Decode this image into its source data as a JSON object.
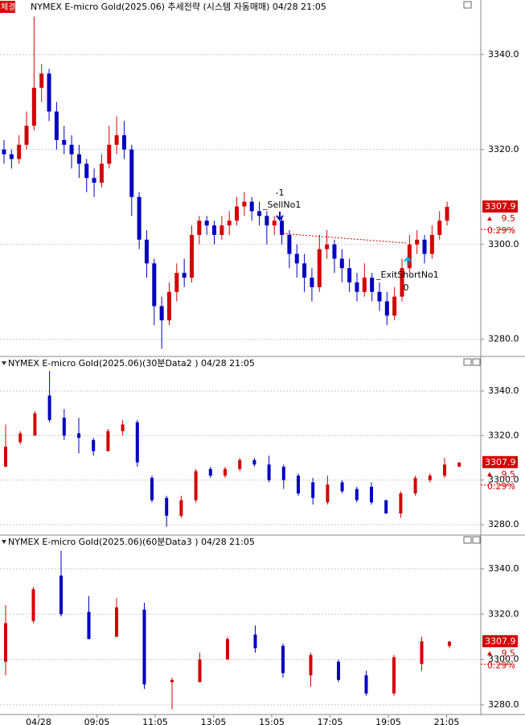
{
  "chart_data": [
    {
      "type": "candlestick",
      "badge": "체결",
      "title": "NYMEX E-micro Gold(2025.06) 추세전략 (시스템 자동매매) 04/28 21:05",
      "ylim": [
        3276.9,
        3351.5
      ],
      "yticks": [
        {
          "value": 3340,
          "label": "3340.0"
        },
        {
          "value": 3320,
          "label": "3320.0"
        },
        {
          "value": 3300,
          "label": "3300.0"
        },
        {
          "value": 3280,
          "label": "3280.0"
        }
      ],
      "grid": true,
      "up_color": "#d40000",
      "down_color": "#0000c0",
      "last": 3307.9,
      "change": 9.5,
      "change_pct": {
        "value": 0.29,
        "label": "0.29%"
      },
      "candles": [
        [
          3320,
          3322,
          3317,
          3319
        ],
        [
          3319,
          3320,
          3316,
          3318
        ],
        [
          3318,
          3323,
          3317,
          3321
        ],
        [
          3321,
          3328,
          3320,
          3325
        ],
        [
          3325,
          3348,
          3324,
          3333
        ],
        [
          3333,
          3338,
          3330,
          3336
        ],
        [
          3336,
          3337,
          3326,
          3328
        ],
        [
          3328,
          3330,
          3320,
          3322
        ],
        [
          3322,
          3325,
          3319,
          3321
        ],
        [
          3321,
          3323,
          3316,
          3319
        ],
        [
          3319,
          3321,
          3314,
          3317
        ],
        [
          3317,
          3318,
          3311,
          3314
        ],
        [
          3314,
          3316,
          3310,
          3313
        ],
        [
          3313,
          3319,
          3312,
          3317
        ],
        [
          3317,
          3325,
          3316,
          3321
        ],
        [
          3321,
          3327,
          3319,
          3323
        ],
        [
          3323,
          3326,
          3318,
          3320
        ],
        [
          3320,
          3321,
          3306,
          3310
        ],
        [
          3310,
          3311,
          3299,
          3301
        ],
        [
          3301,
          3303,
          3293,
          3296
        ],
        [
          3296,
          3297,
          3283,
          3287
        ],
        [
          3287,
          3289,
          3278,
          3284
        ],
        [
          3284,
          3292,
          3283,
          3290
        ],
        [
          3290,
          3296,
          3288,
          3294
        ],
        [
          3294,
          3297,
          3291,
          3293
        ],
        [
          3293,
          3304,
          3292,
          3302
        ],
        [
          3302,
          3306,
          3300,
          3305
        ],
        [
          3305,
          3306,
          3302,
          3304
        ],
        [
          3304,
          3305,
          3300,
          3302
        ],
        [
          3302,
          3306,
          3301,
          3304
        ],
        [
          3304,
          3307,
          3302,
          3305
        ],
        [
          3305,
          3310,
          3304,
          3308
        ],
        [
          3308,
          3311,
          3306,
          3309
        ],
        [
          3309,
          3310,
          3305,
          3307
        ],
        [
          3307,
          3309,
          3304,
          3306
        ],
        [
          3306,
          3307,
          3300,
          3304
        ],
        [
          3304,
          3306,
          3302,
          3305
        ],
        [
          3305,
          3306,
          3300,
          3302
        ],
        [
          3302,
          3303,
          3295,
          3298
        ],
        [
          3298,
          3300,
          3293,
          3296
        ],
        [
          3296,
          3298,
          3290,
          3293
        ],
        [
          3293,
          3295,
          3288,
          3291
        ],
        [
          3291,
          3302,
          3290,
          3299
        ],
        [
          3299,
          3303,
          3297,
          3300
        ],
        [
          3300,
          3301,
          3294,
          3297
        ],
        [
          3297,
          3299,
          3292,
          3295
        ],
        [
          3295,
          3297,
          3290,
          3292
        ],
        [
          3292,
          3294,
          3288,
          3290
        ],
        [
          3290,
          3296,
          3289,
          3293
        ],
        [
          3293,
          3294,
          3288,
          3290
        ],
        [
          3290,
          3292,
          3286,
          3288
        ],
        [
          3288,
          3290,
          3283,
          3285
        ],
        [
          3285,
          3291,
          3284,
          3289
        ],
        [
          3289,
          3297,
          3288,
          3295
        ],
        [
          3295,
          3302,
          3294,
          3300
        ],
        [
          3300,
          3303,
          3298,
          3301
        ],
        [
          3301,
          3302,
          3296,
          3298
        ],
        [
          3298,
          3304,
          3297,
          3302
        ],
        [
          3302,
          3307,
          3301,
          3305
        ],
        [
          3305,
          3309,
          3304,
          3307.9
        ]
      ],
      "annotations": [
        "-1",
        "_SellNo1",
        "_ExitShortNo1",
        "0"
      ]
    },
    {
      "type": "candlestick",
      "title": "NYMEX E-micro Gold(2025.06)(30분Data2 ) 04/28 21:05",
      "ylim": [
        3277.1,
        3349.4
      ],
      "yticks": [
        {
          "value": 3340,
          "label": "3340.0"
        },
        {
          "value": 3320,
          "label": "3320.0"
        },
        {
          "value": 3300,
          "label": "3300.0"
        },
        {
          "value": 3280,
          "label": "3280.0"
        }
      ],
      "grid": true,
      "up_color": "#d40000",
      "down_color": "#0000c0",
      "last": 3307.9,
      "change": 9.5,
      "change_pct": {
        "value": 0.29,
        "label": "0.29%"
      },
      "candles": [
        [
          3306,
          3325,
          3306,
          3315
        ],
        [
          3317,
          3322,
          3316,
          3321
        ],
        [
          3320,
          3331,
          3320,
          3330
        ],
        [
          3338,
          3349,
          3326,
          3327
        ],
        [
          3328,
          3332,
          3318,
          3320
        ],
        [
          3321,
          3328,
          3312,
          3319
        ],
        [
          3318,
          3319,
          3311,
          3313
        ],
        [
          3313,
          3323,
          3313,
          3322
        ],
        [
          3322,
          3327,
          3320,
          3325
        ],
        [
          3326,
          3327,
          3306,
          3308
        ],
        [
          3301,
          3302,
          3290,
          3291
        ],
        [
          3292,
          3293,
          3279,
          3284
        ],
        [
          3284,
          3293,
          3283,
          3291
        ],
        [
          3291,
          3305,
          3290,
          3304
        ],
        [
          3305,
          3306,
          3301,
          3302
        ],
        [
          3302,
          3306,
          3301,
          3305
        ],
        [
          3305,
          3310,
          3304,
          3309
        ],
        [
          3309,
          3310,
          3306,
          3307
        ],
        [
          3307,
          3311,
          3299,
          3300
        ],
        [
          3306,
          3307,
          3296,
          3300
        ],
        [
          3302,
          3303,
          3293,
          3294
        ],
        [
          3299,
          3301,
          3289,
          3292
        ],
        [
          3290,
          3302,
          3289,
          3298
        ],
        [
          3299,
          3300,
          3294,
          3295
        ],
        [
          3296,
          3297,
          3290,
          3291
        ],
        [
          3297,
          3299,
          3289,
          3290
        ],
        [
          3291,
          3291,
          3285,
          3285
        ],
        [
          3285,
          3295,
          3283,
          3294
        ],
        [
          3294,
          3302,
          3293,
          3301
        ],
        [
          3300,
          3303,
          3299,
          3302
        ],
        [
          3302,
          3310,
          3301,
          3307
        ],
        [
          3306,
          3308,
          3306,
          3307.9
        ]
      ]
    },
    {
      "type": "candlestick",
      "title": "NYMEX E-micro Gold(2025.06)(60분Data3 ) 04/28 21:05",
      "ylim": [
        3275.7,
        3348.5
      ],
      "yticks": [
        {
          "value": 3340,
          "label": "3340.0"
        },
        {
          "value": 3320,
          "label": "3320.0"
        },
        {
          "value": 3300,
          "label": "3300.0"
        },
        {
          "value": 3280,
          "label": "3280.0"
        }
      ],
      "grid": true,
      "up_color": "#d40000",
      "down_color": "#0000c0",
      "last": 3307.9,
      "change": 9.5,
      "change_pct": {
        "value": 0.29,
        "label": "0.29%"
      },
      "candles": [
        [
          3299,
          3324,
          3293,
          3316
        ],
        [
          3317,
          3332,
          3316,
          3331
        ],
        [
          3337,
          3348,
          3319,
          3320
        ],
        [
          3321,
          3328,
          3309,
          3309
        ],
        [
          3310,
          3327,
          3310,
          3323
        ],
        [
          3322,
          3325,
          3287,
          3289
        ],
        [
          3290,
          3292,
          3278,
          3291
        ],
        [
          3290,
          3303,
          3290,
          3300
        ],
        [
          3300,
          3310,
          3300,
          3309
        ],
        [
          3311,
          3315,
          3303,
          3305
        ],
        [
          3306,
          3307,
          3292,
          3294
        ],
        [
          3293,
          3303,
          3288,
          3302
        ],
        [
          3299,
          3300,
          3290,
          3291
        ],
        [
          3293,
          3295,
          3284,
          3285
        ],
        [
          3285,
          3302,
          3284,
          3301
        ],
        [
          3298,
          3310,
          3295,
          3308
        ],
        [
          3306,
          3308,
          3305,
          3307.9
        ]
      ],
      "x_labels": [
        "04/28",
        "09:05",
        "11:05",
        "13:05",
        "15:05",
        "17:05",
        "19:05",
        "21:05"
      ]
    }
  ]
}
